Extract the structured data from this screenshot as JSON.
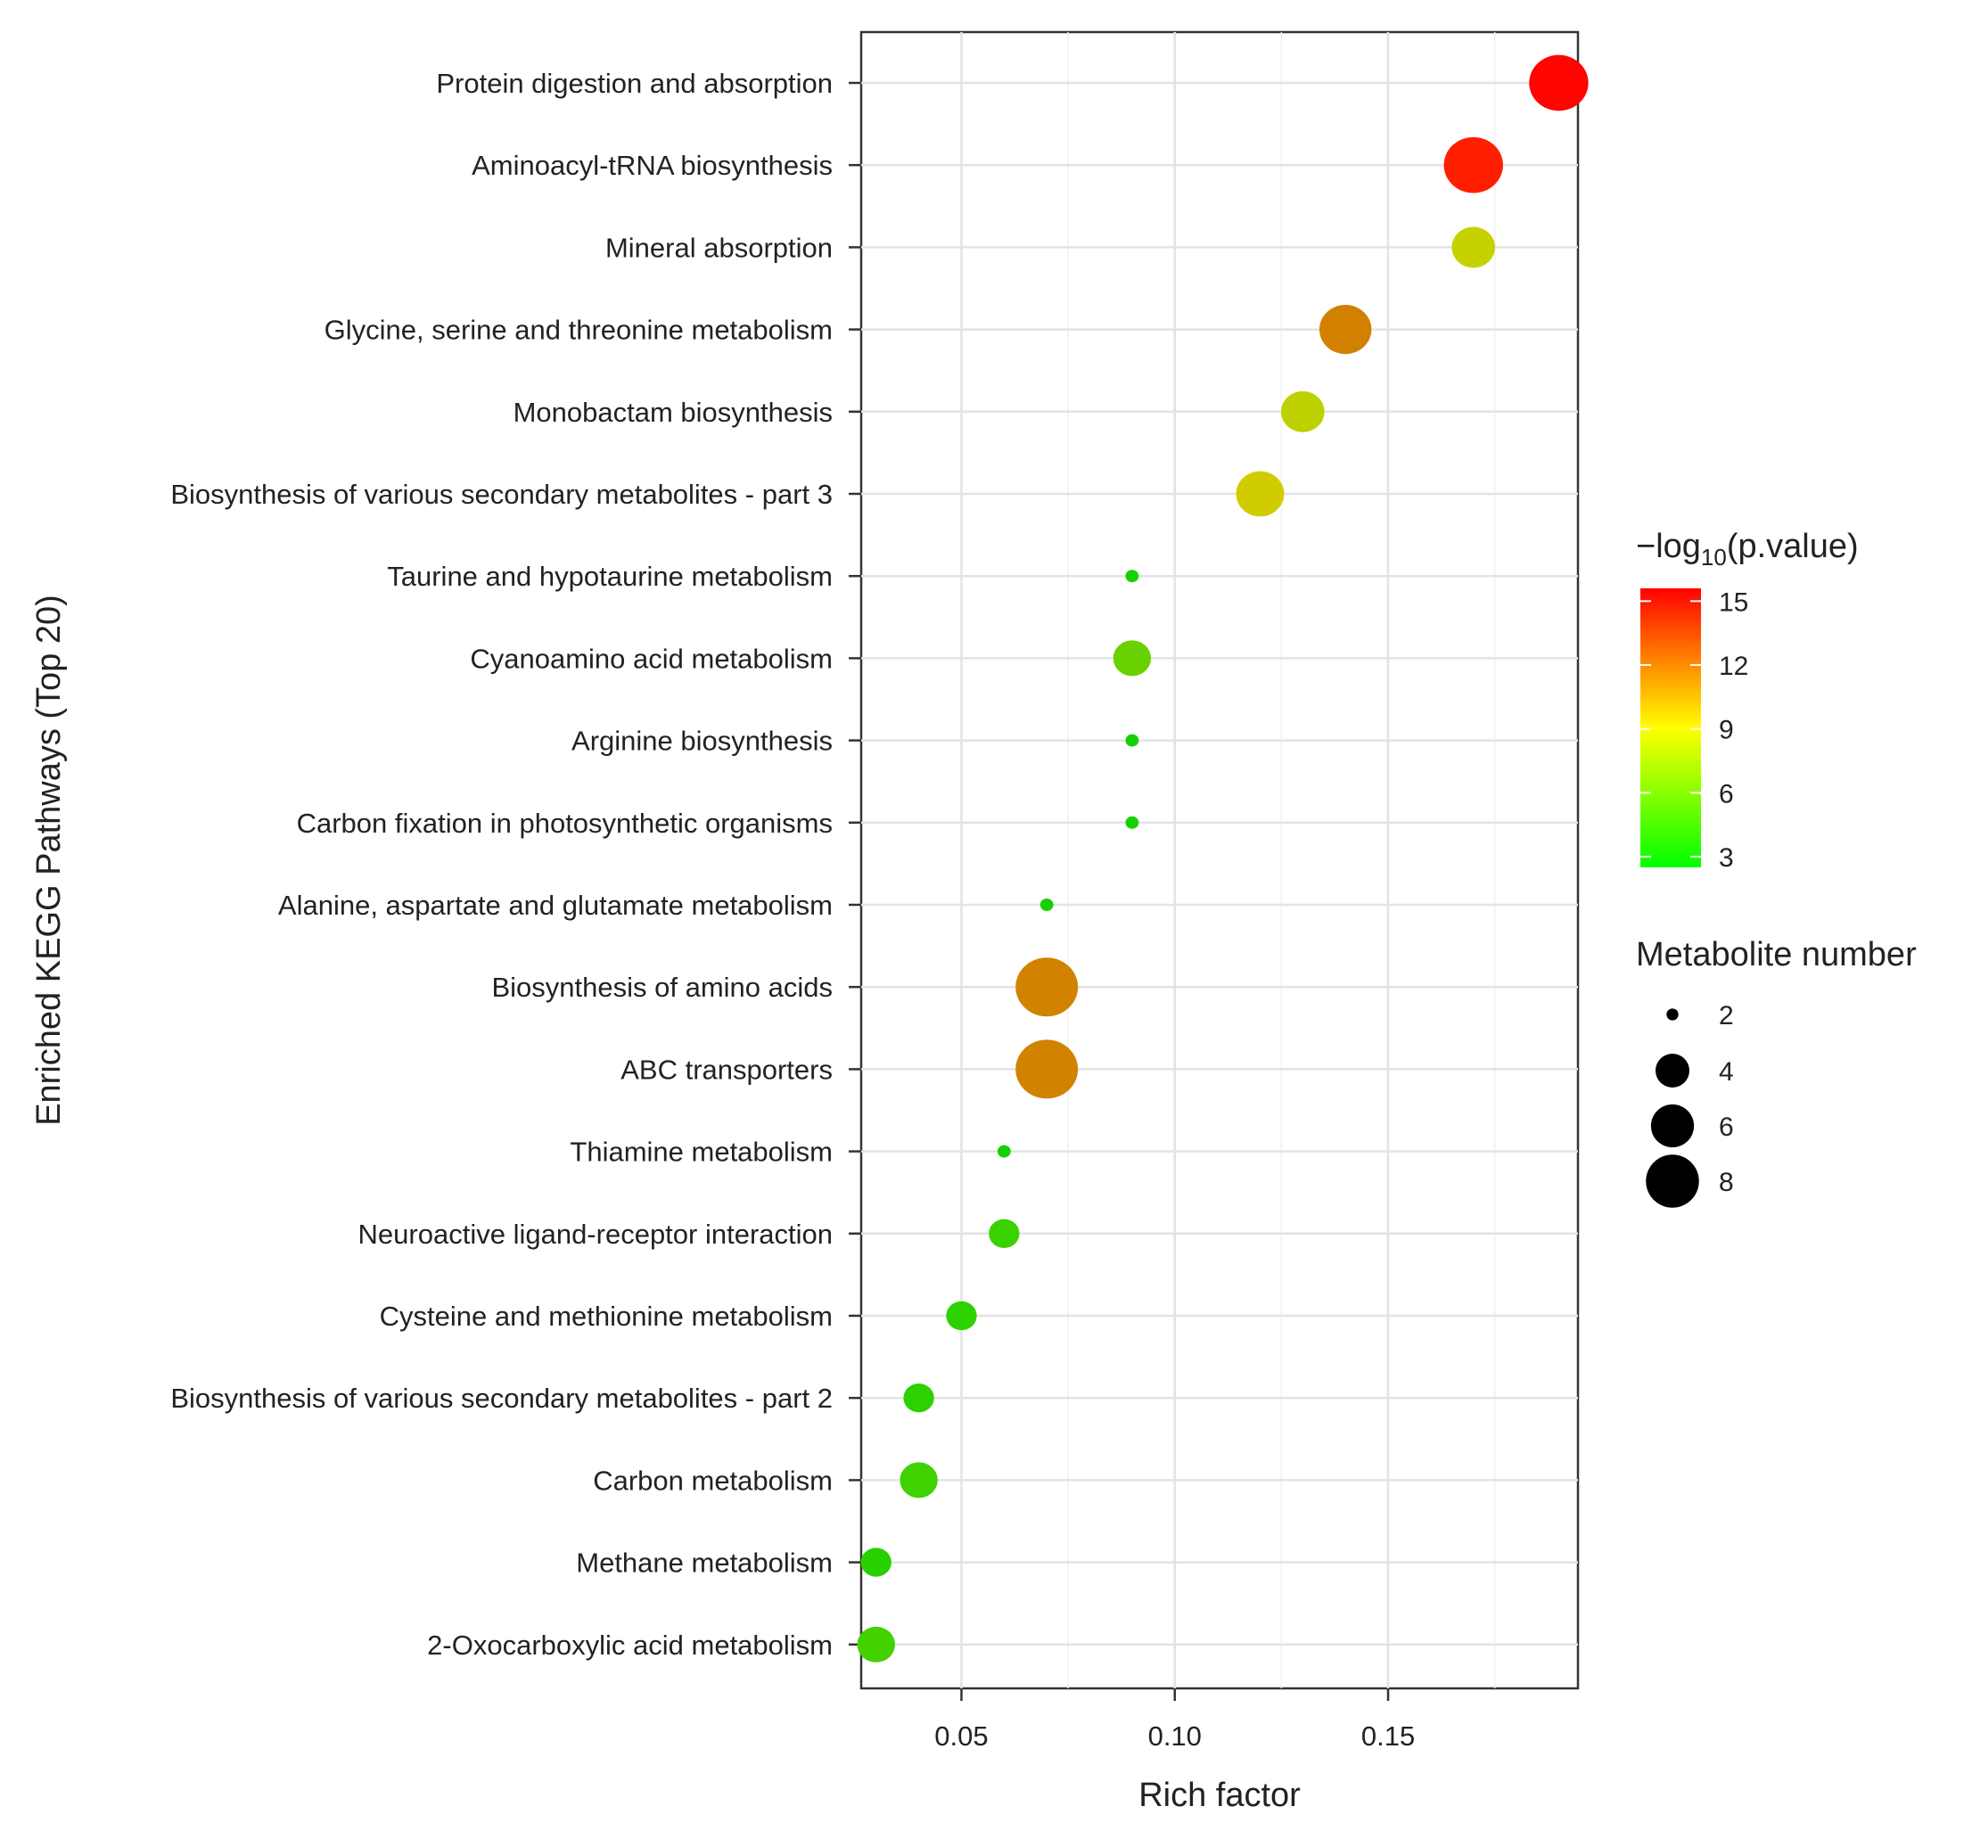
{
  "chart_data": {
    "type": "scatter",
    "xlabel": "Rich factor",
    "ylabel": "Enriched KEGG Pathways (Top 20)",
    "xlim": [
      0.0265,
      0.1945
    ],
    "x_ticks": [
      "0.05",
      "0.10",
      "0.15"
    ],
    "x_tick_values": [
      0.05,
      0.1,
      0.15
    ],
    "grid": true,
    "color_legend": {
      "title_prefix": "−log",
      "title_sub": "10",
      "title_suffix": "(p.value)",
      "ticks": [
        "15",
        "12",
        "9",
        "6",
        "3"
      ],
      "tick_values": [
        15,
        12,
        9,
        6,
        3
      ],
      "range": [
        2.5,
        15.6
      ],
      "low_color": "#00ff00",
      "mid_color": "#ffff00",
      "high_color": "#ff0000",
      "placement": "right"
    },
    "size_legend": {
      "title": "Metabolite number",
      "ticks": [
        "2",
        "4",
        "6",
        "8"
      ],
      "tick_values": [
        2,
        4,
        6,
        8
      ],
      "placement": "right"
    },
    "points": [
      {
        "pathway": "Protein digestion and absorption",
        "rich_factor": 0.19,
        "neg_log10_p": 15.5,
        "count": 8
      },
      {
        "pathway": "Aminoacyl-tRNA biosynthesis",
        "rich_factor": 0.17,
        "neg_log10_p": 14.8,
        "count": 8
      },
      {
        "pathway": "Mineral absorption",
        "rich_factor": 0.17,
        "neg_log10_p": 8.7,
        "count": 4
      },
      {
        "pathway": "Glycine, serine and threonine metabolism",
        "rich_factor": 0.14,
        "neg_log10_p": 11.6,
        "count": 6
      },
      {
        "pathway": "Monobactam biosynthesis",
        "rich_factor": 0.13,
        "neg_log10_p": 8.4,
        "count": 4
      },
      {
        "pathway": "Biosynthesis of various secondary metabolites - part 3",
        "rich_factor": 0.12,
        "neg_log10_p": 9.2,
        "count": 5
      },
      {
        "pathway": "Taurine and hypotaurine metabolism",
        "rich_factor": 0.09,
        "neg_log10_p": 3.2,
        "count": 1
      },
      {
        "pathway": "Cyanoamino acid metabolism",
        "rich_factor": 0.09,
        "neg_log10_p": 5.8,
        "count": 3
      },
      {
        "pathway": "Arginine biosynthesis",
        "rich_factor": 0.09,
        "neg_log10_p": 3.2,
        "count": 1
      },
      {
        "pathway": "Carbon fixation in photosynthetic organisms",
        "rich_factor": 0.09,
        "neg_log10_p": 3.2,
        "count": 1
      },
      {
        "pathway": "Alanine, aspartate and glutamate metabolism",
        "rich_factor": 0.07,
        "neg_log10_p": 3.2,
        "count": 1
      },
      {
        "pathway": "Biosynthesis of amino acids",
        "rich_factor": 0.07,
        "neg_log10_p": 11.5,
        "count": 9
      },
      {
        "pathway": "ABC transporters",
        "rich_factor": 0.07,
        "neg_log10_p": 11.5,
        "count": 9
      },
      {
        "pathway": "Thiamine metabolism",
        "rich_factor": 0.06,
        "neg_log10_p": 3.1,
        "count": 1
      },
      {
        "pathway": "Neuroactive ligand-receptor interaction",
        "rich_factor": 0.06,
        "neg_log10_p": 4.3,
        "count": 2
      },
      {
        "pathway": "Cysteine and methionine metabolism",
        "rich_factor": 0.05,
        "neg_log10_p": 3.9,
        "count": 2
      },
      {
        "pathway": "Biosynthesis of various secondary metabolites - part 2",
        "rich_factor": 0.04,
        "neg_log10_p": 3.9,
        "count": 2
      },
      {
        "pathway": "Carbon metabolism",
        "rich_factor": 0.04,
        "neg_log10_p": 4.5,
        "count": 3
      },
      {
        "pathway": "Methane metabolism",
        "rich_factor": 0.03,
        "neg_log10_p": 3.7,
        "count": 2
      },
      {
        "pathway": "2-Oxocarboxylic acid metabolism",
        "rich_factor": 0.03,
        "neg_log10_p": 4.6,
        "count": 3
      }
    ]
  }
}
